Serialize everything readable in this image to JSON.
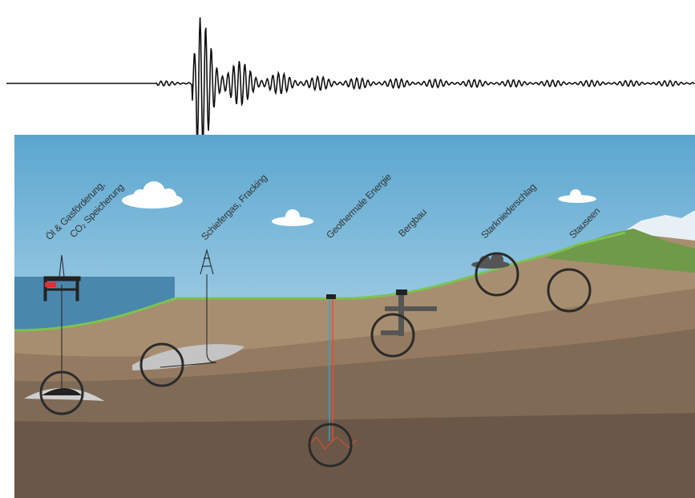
{
  "labels": {
    "oil_gas": [
      "Öl & Gasförderung,",
      "CO₂ Speicherung"
    ],
    "shale": "Schiefergas, Fracking",
    "geothermal": "Geothermale Energie",
    "mining": "Bergbau",
    "rain": "Starkniederschlag",
    "reservoir": "Stauseen"
  }
}
